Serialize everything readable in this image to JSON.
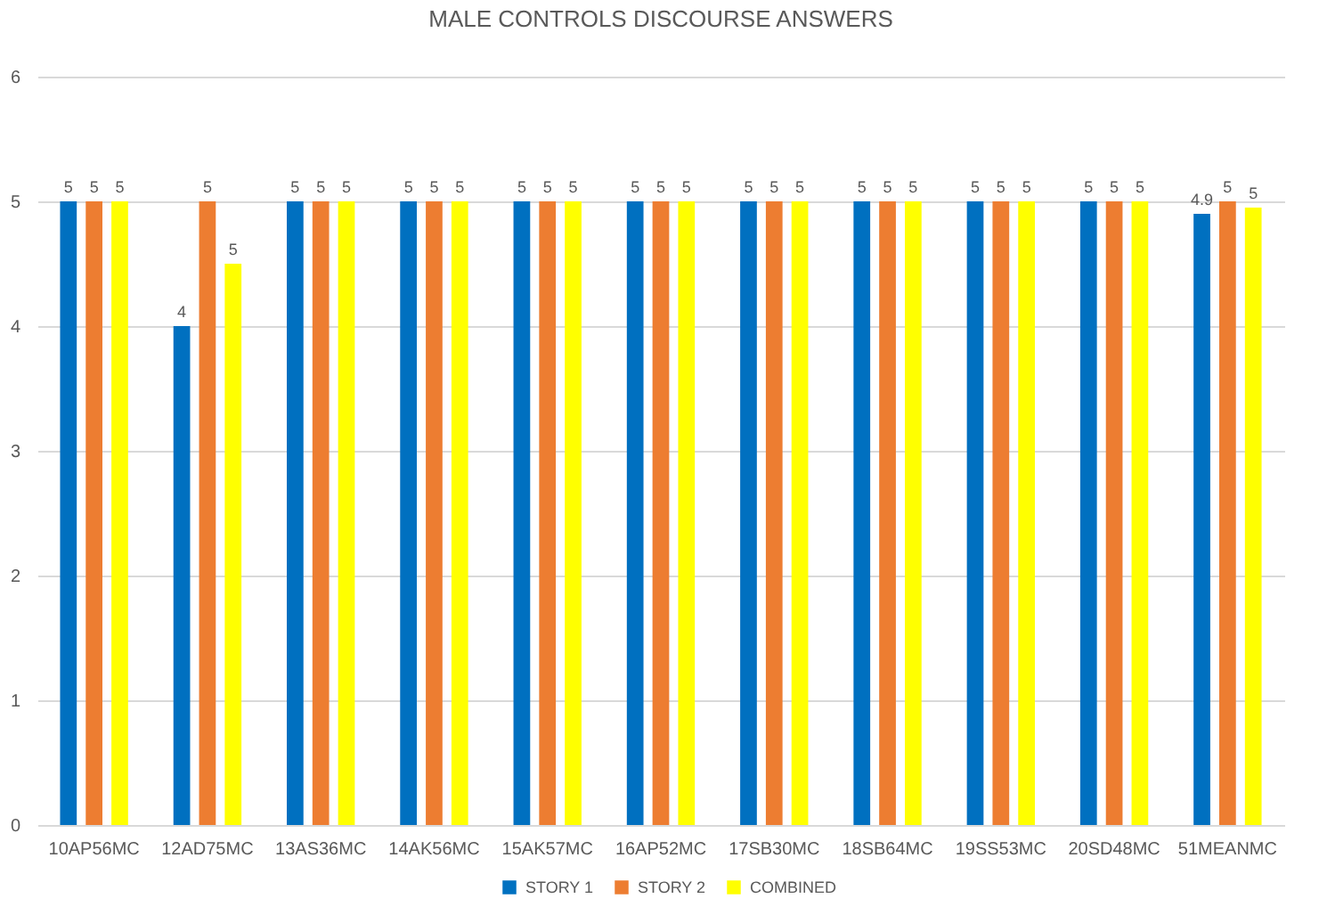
{
  "chart_data": {
    "type": "bar",
    "title": "MALE CONTROLS DISCOURSE ANSWERS",
    "categories": [
      "10AP56MC",
      "12AD75MC",
      "13AS36MC",
      "14AK56MC",
      "15AK57MC",
      "16AP52MC",
      "17SB30MC",
      "18SB64MC",
      "19SS53MC",
      "20SD48MC",
      "51MEANMC"
    ],
    "series": [
      {
        "name": "STORY 1",
        "color": "#0070c0",
        "values": [
          5,
          4,
          5,
          5,
          5,
          5,
          5,
          5,
          5,
          5,
          4.9
        ],
        "value_labels": [
          "5",
          "4",
          "5",
          "5",
          "5",
          "5",
          "5",
          "5",
          "5",
          "5",
          "4.9"
        ]
      },
      {
        "name": "STORY 2",
        "color": "#ed7d31",
        "values": [
          5,
          5,
          5,
          5,
          5,
          5,
          5,
          5,
          5,
          5,
          5
        ],
        "value_labels": [
          "5",
          "5",
          "5",
          "5",
          "5",
          "5",
          "5",
          "5",
          "5",
          "5",
          "5"
        ]
      },
      {
        "name": "COMBINED",
        "color": "#ffff00",
        "values": [
          5,
          4.5,
          5,
          5,
          5,
          5,
          5,
          5,
          5,
          5,
          4.95
        ],
        "value_labels": [
          "5",
          "5",
          "5",
          "5",
          "5",
          "5",
          "5",
          "5",
          "5",
          "5",
          "5"
        ]
      }
    ],
    "ylim": [
      0,
      6
    ],
    "yticks": [
      0,
      1,
      2,
      3,
      4,
      5,
      6
    ],
    "grid": "y",
    "legend": "bottom"
  }
}
